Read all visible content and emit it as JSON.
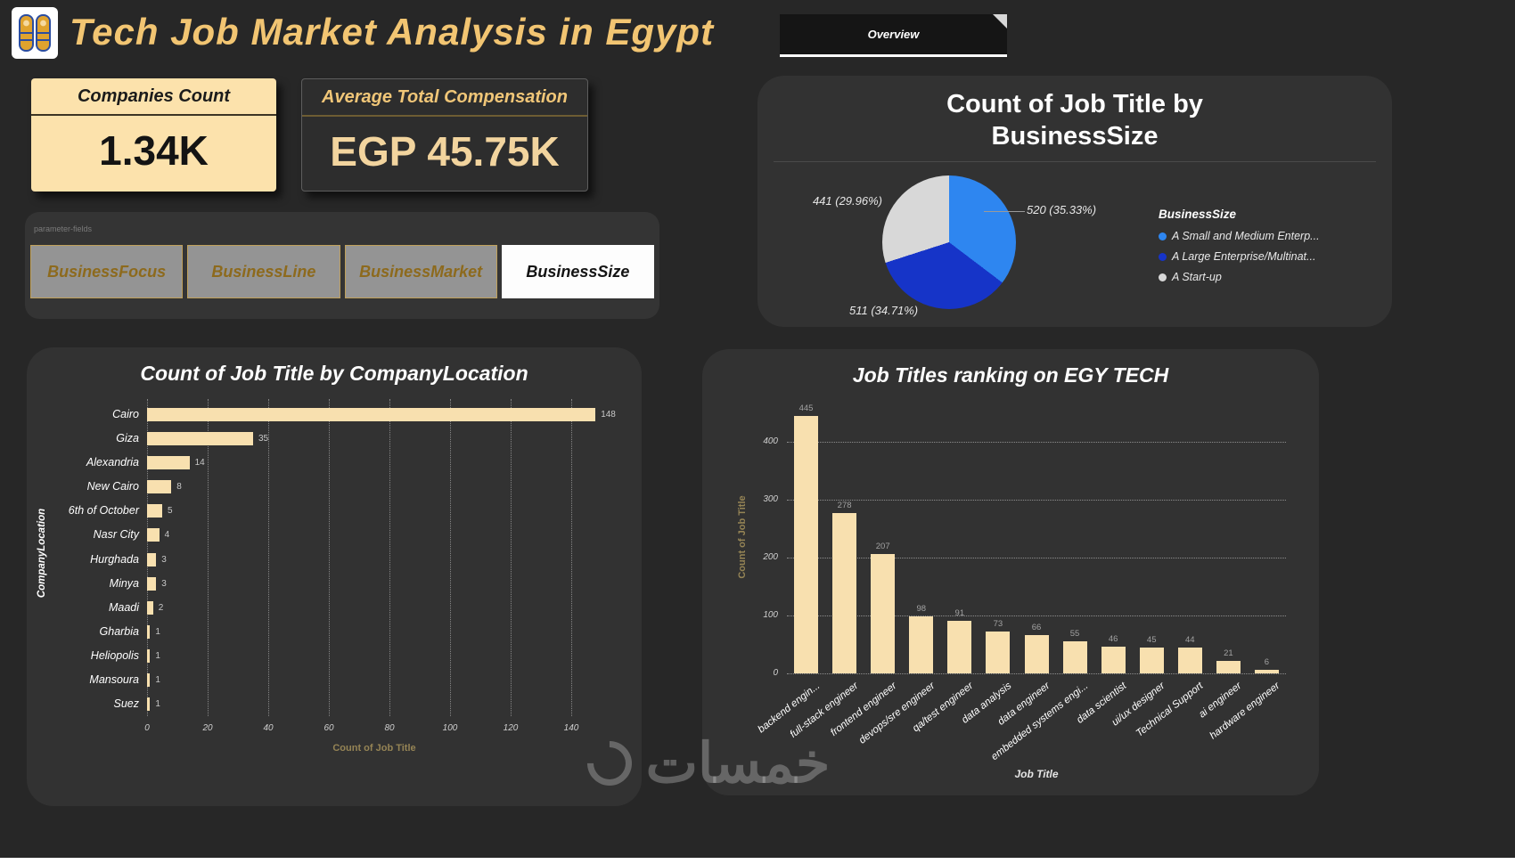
{
  "header": {
    "title": "Tech Job Market Analysis in Egypt",
    "tab_label": "Overview",
    "accent_color": "#F2C572"
  },
  "kpis": [
    {
      "label": "Companies Count",
      "value": "1.34K"
    },
    {
      "label": "Average Total Compensation",
      "value": "EGP 45.75K"
    }
  ],
  "filters": {
    "header_label": "parameter-fields",
    "buttons": [
      {
        "label": "BusinessFocus",
        "selected": false
      },
      {
        "label": "BusinessLine",
        "selected": false
      },
      {
        "label": "BusinessMarket",
        "selected": false
      },
      {
        "label": "BusinessSize",
        "selected": true
      }
    ]
  },
  "watermark": {
    "text": "خمسات"
  },
  "chart_data": [
    {
      "type": "pie",
      "title": "Count of Job Title by BusinessSize",
      "legend_title": "BusinessSize",
      "legend_position": "right",
      "slices": [
        {
          "label": "A Small and Medium Enterp...",
          "value": 520,
          "pct": 35.33,
          "callout": "520 (35.33%)",
          "color": "#2E86F0"
        },
        {
          "label": "A Large Enterprise/Multinat...",
          "value": 511,
          "pct": 34.71,
          "callout": "511 (34.71%)",
          "color": "#1634C8"
        },
        {
          "label": "A Start-up",
          "value": 441,
          "pct": 29.96,
          "callout": "441 (29.96%)",
          "color": "#D8D8D8"
        }
      ]
    },
    {
      "type": "bar",
      "orientation": "horizontal",
      "title": "Count of Job Title by CompanyLocation",
      "xlabel": "Count of Job Title",
      "ylabel": "CompanyLocation",
      "xlim": [
        0,
        150
      ],
      "xticks": [
        0,
        20,
        40,
        60,
        80,
        100,
        120,
        140
      ],
      "grid": "dotted-vertical",
      "bar_color": "#F8E0AF",
      "categories": [
        "Cairo",
        "Giza",
        "Alexandria",
        "New Cairo",
        "6th of October",
        "Nasr City",
        "Hurghada",
        "Minya",
        "Maadi",
        "Gharbia",
        "Heliopolis",
        "Mansoura",
        "Suez"
      ],
      "values": [
        148,
        35,
        14,
        8,
        5,
        4,
        3,
        3,
        2,
        1,
        1,
        1,
        1
      ]
    },
    {
      "type": "bar",
      "orientation": "vertical",
      "title": "Job Titles ranking on EGY TECH",
      "xlabel": "Job Title",
      "ylabel": "Count of Job Title",
      "ylim": [
        0,
        450
      ],
      "yticks": [
        0,
        100,
        200,
        300,
        400
      ],
      "grid": "dotted-horizontal",
      "bar_color": "#F8E0AF",
      "categories": [
        "backend engin...",
        "full-stack engineer",
        "frontend engineer",
        "devops/sre engineer",
        "qa/test engineer",
        "data analysis",
        "data engineer",
        "embedded systems engi...",
        "data scientist",
        "ui/ux designer",
        "Technical Support",
        "ai engineer",
        "hardware engineer"
      ],
      "values": [
        445,
        278,
        207,
        98,
        91,
        73,
        66,
        55,
        46,
        45,
        44,
        21,
        6
      ]
    }
  ]
}
